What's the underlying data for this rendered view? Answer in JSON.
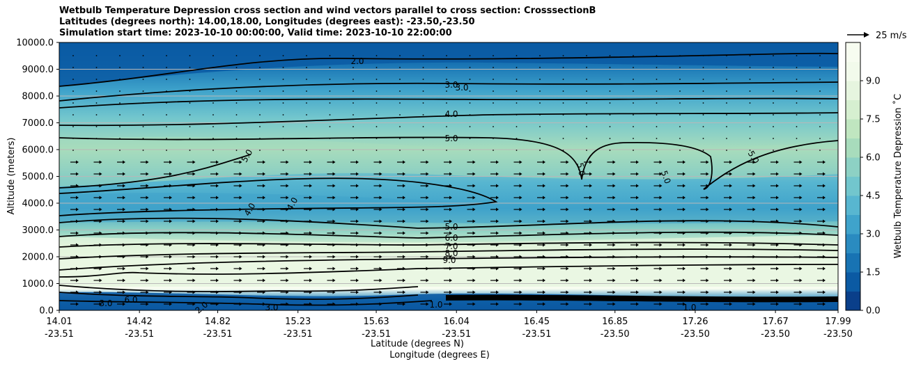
{
  "title_lines": [
    "Wetbulb Temperature Depression cross section and wind vectors parallel to cross section: CrosssectionB",
    "Latitudes (degrees north): 14.00,18.00, Longitudes (degrees east): -23.50,-23.50",
    "Simulation start time: 2023-10-10 00:00:00, Valid time: 2023-10-10 22:00:00"
  ],
  "chart_data": {
    "type": "heatmap",
    "xlabel": "Latitude (degrees N)",
    "xlabel2": "Longitude (degrees E)",
    "ylabel": "Altitude (meters)",
    "ylim": [
      0,
      10000
    ],
    "y_ticks": [
      "0.0",
      "1000.0",
      "2000.0",
      "3000.0",
      "4000.0",
      "5000.0",
      "6000.0",
      "7000.0",
      "8000.0",
      "9000.0",
      "10000.0"
    ],
    "x_ticks": [
      {
        "lat": "14.01",
        "lon": "-23.51"
      },
      {
        "lat": "14.42",
        "lon": "-23.51"
      },
      {
        "lat": "14.82",
        "lon": "-23.51"
      },
      {
        "lat": "15.23",
        "lon": "-23.51"
      },
      {
        "lat": "15.63",
        "lon": "-23.51"
      },
      {
        "lat": "16.04",
        "lon": "-23.51"
      },
      {
        "lat": "16.45",
        "lon": "-23.51"
      },
      {
        "lat": "16.85",
        "lon": "-23.50"
      },
      {
        "lat": "17.26",
        "lon": "-23.50"
      },
      {
        "lat": "17.67",
        "lon": "-23.50"
      },
      {
        "lat": "17.99",
        "lon": "-23.50"
      }
    ],
    "grid": "horizontal",
    "colorbar": {
      "label": "Wetbulb Temperature Depression ˚C",
      "ticks": [
        "0.0",
        "1.5",
        "3.0",
        "4.5",
        "6.0",
        "7.5",
        "9.0"
      ],
      "range": [
        0,
        10.5
      ],
      "colors": [
        "#0a3f8a",
        "#0b5aa3",
        "#1873b3",
        "#2a8bc0",
        "#3fa3cb",
        "#58b6d0",
        "#72c6cd",
        "#8dd1c4",
        "#a8dcbc",
        "#c0e6c0",
        "#d6efd0",
        "#e6f5df",
        "#f2faeb",
        "#f7fcf0"
      ]
    },
    "contour_labels": [
      "2.0",
      "3.0",
      "3.0",
      "4.0",
      "5.0",
      "5.0",
      "5.0",
      "5.0",
      "5.0",
      "4.0",
      "4.0",
      "5.0",
      "6.0",
      "7.0",
      "8.0",
      "9.0",
      "1.0",
      "1.0",
      "2.0",
      "3.0",
      "6.0",
      "3.0"
    ],
    "wind_key": "25 m/s"
  }
}
